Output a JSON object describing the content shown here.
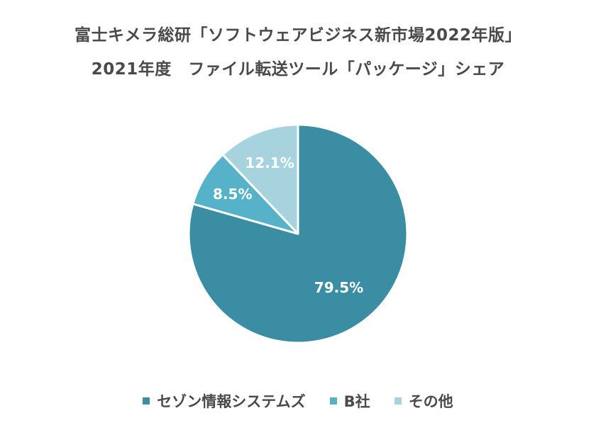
{
  "chart_data": {
    "type": "pie",
    "title": "富士キメラ総研「ソフトウェアビジネス新市場2022年版」",
    "subtitle": "2021年度　ファイル転送ツール「パッケージ」シェア",
    "series": [
      {
        "name": "セゾン情報システムズ",
        "value": 79.5,
        "label": "79.5%",
        "color": "#3b8da3"
      },
      {
        "name": "B社",
        "value": 8.5,
        "label": "8.5%",
        "color": "#56b2c9"
      },
      {
        "name": "その他",
        "value": 12.1,
        "label": "12.1%",
        "color": "#a7d3df"
      }
    ],
    "legend_position": "bottom",
    "start_angle_deg": 0,
    "direction": "clockwise"
  }
}
